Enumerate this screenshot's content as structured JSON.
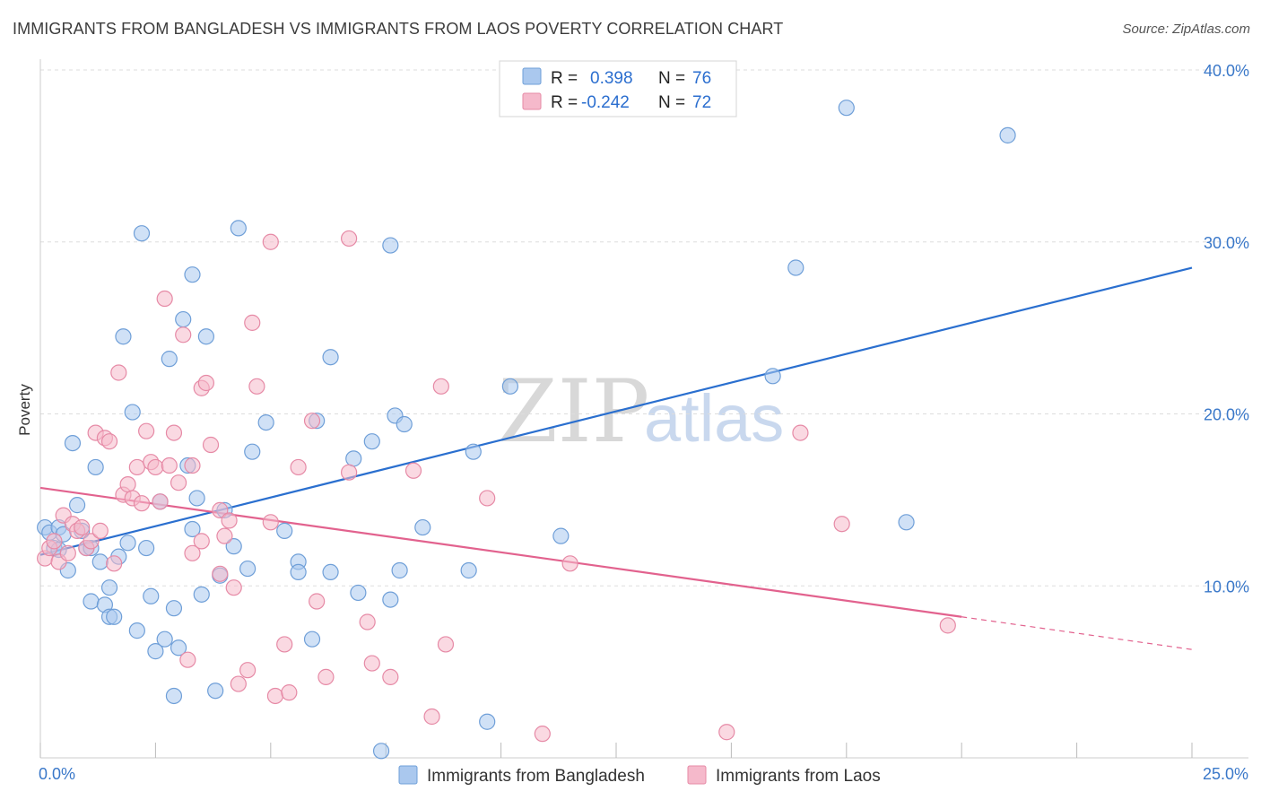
{
  "title": "IMMIGRANTS FROM BANGLADESH VS IMMIGRANTS FROM LAOS POVERTY CORRELATION CHART",
  "source": "Source: ZipAtlas.com",
  "watermark": {
    "zip": "ZIP",
    "atlas": "atlas"
  },
  "colors": {
    "blue_fill": "#aac8ee",
    "blue_stroke": "#6f9fd8",
    "blue_line": "#2a6fcf",
    "pink_fill": "#f5b9cb",
    "pink_stroke": "#e68aa6",
    "pink_line": "#e2628e",
    "grid": "#dddddd",
    "axis_text": "#3a78c9"
  },
  "legend": {
    "rows": [
      {
        "r_label": "R =",
        "r_value": "0.398",
        "n_label": "N =",
        "n_value": "76"
      },
      {
        "r_label": "R =",
        "r_value": "-0.242",
        "n_label": "N =",
        "n_value": "72"
      }
    ]
  },
  "chart_data": {
    "type": "scatter",
    "title": "IMMIGRANTS FROM BANGLADESH VS IMMIGRANTS FROM LAOS POVERTY CORRELATION CHART",
    "xlabel": "",
    "ylabel": "Poverty",
    "xlim": [
      0,
      25
    ],
    "ylim": [
      0,
      40
    ],
    "x_tick_labels": [
      "0.0%",
      "25.0%"
    ],
    "y_ticks": [
      10,
      20,
      30,
      40
    ],
    "y_tick_labels": [
      "10.0%",
      "20.0%",
      "30.0%",
      "40.0%"
    ],
    "grid": true,
    "series": [
      {
        "name": "Immigrants from Bangladesh",
        "color": "blue",
        "trend": {
          "x": [
            0,
            25
          ],
          "y": [
            11.8,
            28.5
          ]
        },
        "points": [
          [
            0.1,
            13.4
          ],
          [
            0.2,
            13.1
          ],
          [
            0.3,
            12.2
          ],
          [
            0.4,
            13.4
          ],
          [
            0.5,
            13.0
          ],
          [
            0.4,
            12.1
          ],
          [
            0.6,
            10.9
          ],
          [
            0.7,
            18.3
          ],
          [
            0.8,
            14.7
          ],
          [
            0.9,
            13.2
          ],
          [
            1.0,
            12.2
          ],
          [
            1.1,
            12.2
          ],
          [
            1.1,
            9.1
          ],
          [
            1.2,
            16.9
          ],
          [
            1.3,
            11.4
          ],
          [
            1.4,
            8.9
          ],
          [
            1.5,
            8.2
          ],
          [
            1.5,
            9.9
          ],
          [
            1.6,
            8.2
          ],
          [
            1.7,
            11.7
          ],
          [
            1.8,
            24.5
          ],
          [
            1.9,
            12.5
          ],
          [
            2.0,
            20.1
          ],
          [
            2.1,
            7.4
          ],
          [
            2.2,
            30.5
          ],
          [
            2.3,
            12.2
          ],
          [
            2.4,
            9.4
          ],
          [
            2.5,
            6.2
          ],
          [
            2.6,
            14.9
          ],
          [
            2.7,
            6.9
          ],
          [
            2.8,
            23.2
          ],
          [
            2.9,
            8.7
          ],
          [
            2.9,
            3.6
          ],
          [
            3.0,
            6.4
          ],
          [
            3.1,
            25.5
          ],
          [
            3.2,
            17.0
          ],
          [
            3.3,
            13.3
          ],
          [
            3.3,
            28.1
          ],
          [
            3.4,
            15.1
          ],
          [
            3.5,
            9.5
          ],
          [
            3.6,
            24.5
          ],
          [
            3.8,
            3.9
          ],
          [
            3.9,
            10.6
          ],
          [
            4.0,
            14.4
          ],
          [
            4.2,
            12.3
          ],
          [
            4.3,
            30.8
          ],
          [
            4.5,
            11.0
          ],
          [
            4.6,
            17.8
          ],
          [
            4.9,
            19.5
          ],
          [
            5.3,
            13.2
          ],
          [
            5.6,
            11.4
          ],
          [
            5.6,
            10.8
          ],
          [
            5.9,
            6.9
          ],
          [
            6.0,
            19.6
          ],
          [
            6.3,
            23.3
          ],
          [
            6.3,
            10.8
          ],
          [
            6.8,
            17.4
          ],
          [
            6.9,
            9.6
          ],
          [
            7.2,
            18.4
          ],
          [
            7.4,
            0.4
          ],
          [
            7.6,
            29.8
          ],
          [
            7.6,
            9.2
          ],
          [
            7.7,
            19.9
          ],
          [
            7.9,
            19.4
          ],
          [
            7.8,
            10.9
          ],
          [
            8.3,
            13.4
          ],
          [
            9.3,
            10.9
          ],
          [
            9.4,
            17.8
          ],
          [
            9.7,
            2.1
          ],
          [
            10.2,
            21.6
          ],
          [
            11.3,
            12.9
          ],
          [
            15.9,
            22.2
          ],
          [
            16.4,
            28.5
          ],
          [
            17.5,
            37.8
          ],
          [
            18.8,
            13.7
          ],
          [
            21.0,
            36.2
          ]
        ]
      },
      {
        "name": "Immigrants from Laos",
        "color": "pink",
        "trend": {
          "x": [
            0,
            20
          ],
          "y": [
            15.7,
            8.2
          ]
        },
        "trend_extension": {
          "x": [
            20,
            25
          ],
          "y": [
            8.2,
            6.3
          ]
        },
        "points": [
          [
            0.1,
            11.6
          ],
          [
            0.2,
            12.2
          ],
          [
            0.3,
            12.6
          ],
          [
            0.4,
            11.4
          ],
          [
            0.5,
            14.1
          ],
          [
            0.6,
            11.9
          ],
          [
            0.7,
            13.6
          ],
          [
            0.8,
            13.2
          ],
          [
            0.9,
            13.4
          ],
          [
            1.0,
            12.2
          ],
          [
            1.1,
            12.6
          ],
          [
            1.2,
            18.9
          ],
          [
            1.3,
            13.2
          ],
          [
            1.4,
            18.6
          ],
          [
            1.5,
            18.4
          ],
          [
            1.6,
            11.3
          ],
          [
            1.7,
            22.4
          ],
          [
            1.8,
            15.3
          ],
          [
            1.9,
            15.9
          ],
          [
            2.0,
            15.1
          ],
          [
            2.1,
            16.9
          ],
          [
            2.2,
            14.8
          ],
          [
            2.3,
            19.0
          ],
          [
            2.4,
            17.2
          ],
          [
            2.5,
            16.9
          ],
          [
            2.6,
            14.9
          ],
          [
            2.7,
            26.7
          ],
          [
            2.8,
            17.0
          ],
          [
            2.9,
            18.9
          ],
          [
            3.0,
            16.0
          ],
          [
            3.1,
            24.6
          ],
          [
            3.2,
            5.7
          ],
          [
            3.3,
            17.0
          ],
          [
            3.3,
            11.9
          ],
          [
            3.5,
            21.5
          ],
          [
            3.6,
            21.8
          ],
          [
            3.7,
            18.2
          ],
          [
            3.9,
            14.4
          ],
          [
            3.9,
            10.7
          ],
          [
            4.0,
            12.9
          ],
          [
            4.1,
            13.8
          ],
          [
            4.2,
            9.9
          ],
          [
            4.3,
            4.3
          ],
          [
            4.5,
            5.1
          ],
          [
            4.6,
            25.3
          ],
          [
            4.7,
            21.6
          ],
          [
            5.0,
            13.7
          ],
          [
            5.1,
            3.6
          ],
          [
            5.3,
            6.6
          ],
          [
            5.4,
            3.8
          ],
          [
            5.6,
            16.9
          ],
          [
            5.9,
            19.6
          ],
          [
            6.0,
            9.1
          ],
          [
            6.2,
            4.7
          ],
          [
            6.7,
            30.2
          ],
          [
            6.7,
            16.6
          ],
          [
            7.1,
            7.9
          ],
          [
            7.2,
            5.5
          ],
          [
            7.6,
            4.7
          ],
          [
            8.1,
            16.7
          ],
          [
            8.5,
            2.4
          ],
          [
            8.7,
            21.6
          ],
          [
            8.8,
            6.6
          ],
          [
            9.7,
            15.1
          ],
          [
            10.9,
            1.4
          ],
          [
            11.5,
            11.3
          ],
          [
            14.9,
            1.5
          ],
          [
            16.5,
            18.9
          ],
          [
            17.4,
            13.6
          ],
          [
            19.7,
            7.7
          ],
          [
            3.5,
            12.6
          ],
          [
            5.0,
            30.0
          ]
        ]
      }
    ]
  },
  "bottom_legend": [
    {
      "label": "Immigrants from Bangladesh"
    },
    {
      "label": "Immigrants from Laos"
    }
  ]
}
